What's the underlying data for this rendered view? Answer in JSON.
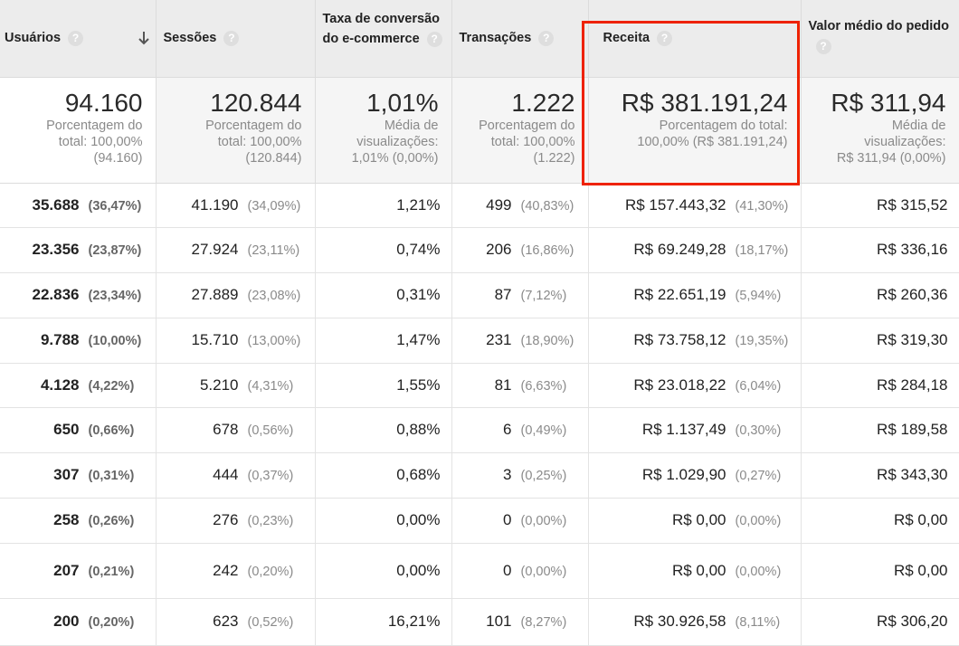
{
  "columns": {
    "users": "Usuários",
    "sessions": "Sessões",
    "conversion": "Taxa de conversão do e-commerce",
    "transactions": "Transações",
    "revenue": "Receita",
    "avg_order": "Valor médio do pedido",
    "help_glyph": "?"
  },
  "totals": {
    "users": {
      "value": "94.160",
      "line1": "Porcentagem do",
      "line2": "total: 100,00%",
      "line3": "(94.160)"
    },
    "sessions": {
      "value": "120.844",
      "line1": "Porcentagem do",
      "line2": "total: 100,00%",
      "line3": "(120.844)"
    },
    "conversion": {
      "value": "1,01%",
      "line1": "Média de",
      "line2": "visualizações:",
      "line3": "1,01% (0,00%)"
    },
    "transactions": {
      "value": "1.222",
      "line1": "Porcentagem do",
      "line2": "total: 100,00%",
      "line3": "(1.222)"
    },
    "revenue": {
      "value": "R$ 381.191,24",
      "line1": "Porcentagem do total:",
      "line2": "100,00% (R$ 381.191,24)"
    },
    "avg_order": {
      "value": "R$ 311,94",
      "line1": "Média de",
      "line2": "visualizações:",
      "line3": "R$ 311,94 (0,00%)"
    }
  },
  "rows": [
    {
      "users": "35.688",
      "users_pct": "(36,47%)",
      "sessions": "41.190",
      "sessions_pct": "(34,09%)",
      "conversion": "1,21%",
      "transactions": "499",
      "transactions_pct": "(40,83%)",
      "revenue": "R$ 157.443,32",
      "revenue_pct": "(41,30%)",
      "avg_order": "R$ 315,52"
    },
    {
      "users": "23.356",
      "users_pct": "(23,87%)",
      "sessions": "27.924",
      "sessions_pct": "(23,11%)",
      "conversion": "0,74%",
      "transactions": "206",
      "transactions_pct": "(16,86%)",
      "revenue": "R$ 69.249,28",
      "revenue_pct": "(18,17%)",
      "avg_order": "R$ 336,16"
    },
    {
      "users": "22.836",
      "users_pct": "(23,34%)",
      "sessions": "27.889",
      "sessions_pct": "(23,08%)",
      "conversion": "0,31%",
      "transactions": "87",
      "transactions_pct": "(7,12%)",
      "revenue": "R$ 22.651,19",
      "revenue_pct": "(5,94%)",
      "avg_order": "R$ 260,36"
    },
    {
      "users": "9.788",
      "users_pct": "(10,00%)",
      "sessions": "15.710",
      "sessions_pct": "(13,00%)",
      "conversion": "1,47%",
      "transactions": "231",
      "transactions_pct": "(18,90%)",
      "revenue": "R$ 73.758,12",
      "revenue_pct": "(19,35%)",
      "avg_order": "R$ 319,30"
    },
    {
      "users": "4.128",
      "users_pct": "(4,22%)",
      "sessions": "5.210",
      "sessions_pct": "(4,31%)",
      "conversion": "1,55%",
      "transactions": "81",
      "transactions_pct": "(6,63%)",
      "revenue": "R$ 23.018,22",
      "revenue_pct": "(6,04%)",
      "avg_order": "R$ 284,18"
    },
    {
      "users": "650",
      "users_pct": "(0,66%)",
      "sessions": "678",
      "sessions_pct": "(0,56%)",
      "conversion": "0,88%",
      "transactions": "6",
      "transactions_pct": "(0,49%)",
      "revenue": "R$ 1.137,49",
      "revenue_pct": "(0,30%)",
      "avg_order": "R$ 189,58"
    },
    {
      "users": "307",
      "users_pct": "(0,31%)",
      "sessions": "444",
      "sessions_pct": "(0,37%)",
      "conversion": "0,68%",
      "transactions": "3",
      "transactions_pct": "(0,25%)",
      "revenue": "R$ 1.029,90",
      "revenue_pct": "(0,27%)",
      "avg_order": "R$ 343,30"
    },
    {
      "users": "258",
      "users_pct": "(0,26%)",
      "sessions": "276",
      "sessions_pct": "(0,23%)",
      "conversion": "0,00%",
      "transactions": "0",
      "transactions_pct": "(0,00%)",
      "revenue": "R$ 0,00",
      "revenue_pct": "(0,00%)",
      "avg_order": "R$ 0,00"
    },
    {
      "users": "207",
      "users_pct": "(0,21%)",
      "sessions": "242",
      "sessions_pct": "(0,20%)",
      "conversion": "0,00%",
      "transactions": "0",
      "transactions_pct": "(0,00%)",
      "revenue": "R$ 0,00",
      "revenue_pct": "(0,00%)",
      "avg_order": "R$ 0,00"
    },
    {
      "users": "200",
      "users_pct": "(0,20%)",
      "sessions": "623",
      "sessions_pct": "(0,52%)",
      "conversion": "16,21%",
      "transactions": "101",
      "transactions_pct": "(8,27%)",
      "revenue": "R$ 30.926,58",
      "revenue_pct": "(8,11%)",
      "avg_order": "R$ 306,20"
    }
  ],
  "highlight_color": "#ee2200"
}
